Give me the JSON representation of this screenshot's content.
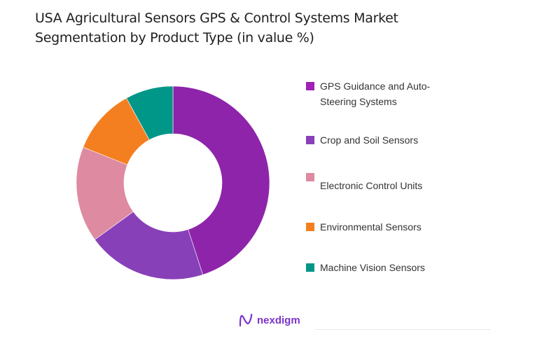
{
  "title": "USA Agricultural Sensors GPS & Control Systems Market Segmentation by Product Type (in value %)",
  "title_lines": [
    "USA Agricultural Sensors GPS & Control Systems Market",
    "Segmentation by Product Type (in value %)"
  ],
  "chart_data": {
    "type": "pie",
    "subtype": "donut",
    "title": "USA Agricultural Sensors GPS & Control Systems Market Segmentation by Product Type (in value %)",
    "categories": [
      "GPS Guidance and Auto-Steering Systems",
      "Crop and Soil Sensors",
      "Electronic Control Units",
      "Environmental Sensors",
      "Machine Vision Sensors"
    ],
    "values": [
      45,
      20,
      16,
      11,
      8
    ],
    "colors": [
      "#8e24aa",
      "#8840b9",
      "#de8aa0",
      "#f47f20",
      "#009688"
    ],
    "legend_position": "right",
    "start_angle": "12 o'clock, clockwise"
  },
  "legend": [
    {
      "label_lines": [
        "GPS Guidance and Auto-",
        "Steering Systems"
      ],
      "color": "#a020b8"
    },
    {
      "label_lines": [
        "Crop and Soil Sensors"
      ],
      "color": "#8840b9"
    },
    {
      "label_lines": [
        "",
        "Electronic Control Units"
      ],
      "color": "#de8aa0"
    },
    {
      "label_lines": [
        "Environmental Sensors"
      ],
      "color": "#f47f20"
    },
    {
      "label_lines": [
        "Machine Vision Sensors"
      ],
      "color": "#009688"
    }
  ],
  "brand": {
    "name": "nexdigm",
    "color": "#7b35c9"
  }
}
